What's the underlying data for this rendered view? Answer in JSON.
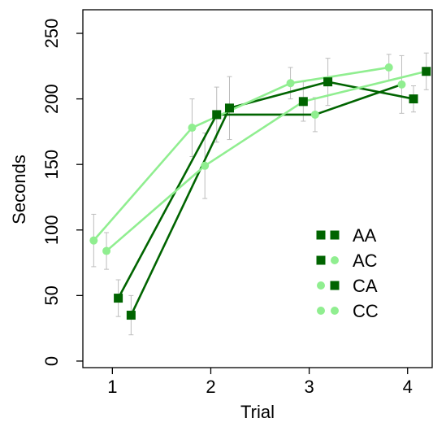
{
  "chart_data": {
    "type": "line",
    "title": "",
    "xlabel": "Trial",
    "ylabel": "Seconds",
    "xlim": [
      0.7,
      4.25
    ],
    "ylim": [
      -5,
      268
    ],
    "x_ticks": [
      1,
      2,
      3,
      4
    ],
    "x_tick_labels": [
      "1",
      "2",
      "3",
      "4"
    ],
    "y_ticks": [
      0,
      50,
      100,
      150,
      200,
      250
    ],
    "y_tick_labels": [
      "0",
      "50",
      "100",
      "150",
      "200",
      "250"
    ],
    "grid": false,
    "legend_position": "bottom-right",
    "colors": {
      "dark": "#006400",
      "light": "#90EE90",
      "error": "#bdbdbd"
    },
    "series": [
      {
        "name": "AA",
        "line_color": "#006400",
        "marker_shapes": [
          "square",
          "square"
        ],
        "marker_colors": [
          "#006400",
          "#006400"
        ],
        "points": [
          {
            "x": 1.19,
            "y": 35,
            "err": 15
          },
          {
            "x": 2.19,
            "y": 193,
            "err": 24
          },
          {
            "x": 3.19,
            "y": 213,
            "err": 18
          },
          {
            "x": 4.06,
            "y": 200,
            "err": 10
          }
        ]
      },
      {
        "name": "AC",
        "line_color": "#006400",
        "marker_shapes": [
          "square",
          "circle"
        ],
        "marker_colors": [
          "#006400",
          "#90EE90"
        ],
        "points": [
          {
            "x": 1.06,
            "y": 48,
            "err": 14
          },
          {
            "x": 2.06,
            "y": 188,
            "err": 21
          },
          {
            "x": 3.06,
            "y": 188,
            "err": 13
          },
          {
            "x": 3.94,
            "y": 211,
            "err": 22
          }
        ]
      },
      {
        "name": "CA",
        "line_color": "#90EE90",
        "marker_shapes": [
          "circle",
          "square"
        ],
        "marker_colors": [
          "#90EE90",
          "#006400"
        ],
        "points": [
          {
            "x": 0.94,
            "y": 84,
            "err": 14
          },
          {
            "x": 1.94,
            "y": 149,
            "err": 25
          },
          {
            "x": 2.94,
            "y": 198,
            "err": 15
          },
          {
            "x": 4.19,
            "y": 221,
            "err": 14
          }
        ]
      },
      {
        "name": "CC",
        "line_color": "#90EE90",
        "marker_shapes": [
          "circle",
          "circle"
        ],
        "marker_colors": [
          "#90EE90",
          "#90EE90"
        ],
        "points": [
          {
            "x": 0.81,
            "y": 92,
            "err": 20
          },
          {
            "x": 1.81,
            "y": 178,
            "err": 22
          },
          {
            "x": 2.81,
            "y": 212,
            "err": 12
          },
          {
            "x": 3.81,
            "y": 224,
            "err": 10
          }
        ]
      }
    ]
  }
}
